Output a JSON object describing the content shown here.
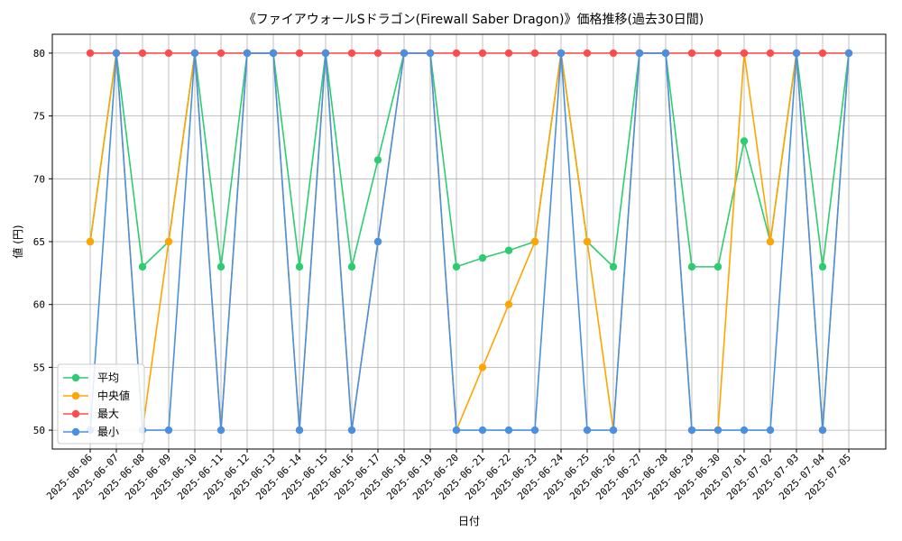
{
  "chart_data": {
    "type": "line",
    "title": "《ファイアウォールSドラゴン(Firewall Saber Dragon)》価格推移(過去30日間)",
    "xlabel": "日付",
    "ylabel": "値 (円)",
    "ylim": [
      48.5,
      81.5
    ],
    "yticks": [
      50,
      55,
      60,
      65,
      70,
      75,
      80
    ],
    "grid": true,
    "legend_position": "lower-left",
    "categories": [
      "2025-06-06",
      "2025-06-07",
      "2025-06-08",
      "2025-06-09",
      "2025-06-10",
      "2025-06-11",
      "2025-06-12",
      "2025-06-13",
      "2025-06-14",
      "2025-06-15",
      "2025-06-16",
      "2025-06-17",
      "2025-06-18",
      "2025-06-19",
      "2025-06-20",
      "2025-06-21",
      "2025-06-22",
      "2025-06-23",
      "2025-06-24",
      "2025-06-25",
      "2025-06-26",
      "2025-06-27",
      "2025-06-28",
      "2025-06-29",
      "2025-06-30",
      "2025-07-01",
      "2025-07-02",
      "2025-07-03",
      "2025-07-04",
      "2025-07-05"
    ],
    "series": [
      {
        "name": "平均",
        "color": "#2ecc71",
        "values": [
          65,
          80,
          63,
          65,
          80,
          63,
          80,
          80,
          63,
          80,
          63,
          71.5,
          80,
          80,
          63,
          63.7,
          64.3,
          65,
          80,
          65,
          63,
          80,
          80,
          63,
          63,
          73,
          65,
          80,
          63,
          80
        ]
      },
      {
        "name": "中央値",
        "color": "#ffa500",
        "values": [
          65,
          80,
          50,
          65,
          80,
          50,
          80,
          80,
          50,
          80,
          50,
          65,
          80,
          80,
          50,
          55,
          60,
          65,
          80,
          65,
          50,
          80,
          80,
          50,
          50,
          80,
          65,
          80,
          50,
          80
        ]
      },
      {
        "name": "最大",
        "color": "#ff4d4d",
        "values": [
          80,
          80,
          80,
          80,
          80,
          80,
          80,
          80,
          80,
          80,
          80,
          80,
          80,
          80,
          80,
          80,
          80,
          80,
          80,
          80,
          80,
          80,
          80,
          80,
          80,
          80,
          80,
          80,
          80,
          80
        ]
      },
      {
        "name": "最小",
        "color": "#4a90e2",
        "values": [
          50,
          80,
          50,
          50,
          80,
          50,
          80,
          80,
          50,
          80,
          50,
          65,
          80,
          80,
          50,
          50,
          50,
          50,
          80,
          50,
          50,
          80,
          80,
          50,
          50,
          50,
          50,
          80,
          50,
          80
        ]
      }
    ]
  }
}
